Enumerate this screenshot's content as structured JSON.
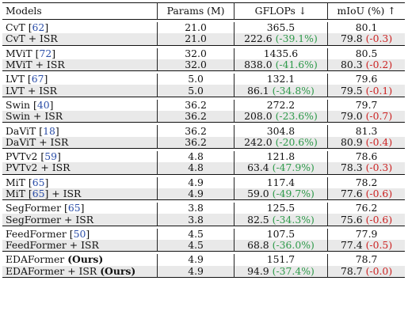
{
  "table": {
    "headers": {
      "models": "Models",
      "params": "Params (M)",
      "gflops": "GFLOPs ↓",
      "miou": "mIoU (%) ↑"
    },
    "groups": [
      {
        "base": {
          "name": "CvT",
          "cite": "62",
          "params": "21.0",
          "gflops": "365.5",
          "miou": "80.1"
        },
        "isr": {
          "name": "CvT",
          "suffix": "+ ISR",
          "params": "21.0",
          "gflops": "222.6",
          "gflops_delta": "(-39.1%)",
          "miou": "79.8",
          "miou_delta": "(-0.3)"
        }
      },
      {
        "base": {
          "name": "MViT",
          "cite": "72",
          "params": "32.0",
          "gflops": "1435.6",
          "miou": "80.5"
        },
        "isr": {
          "name": "MViT",
          "suffix": "+ ISR",
          "params": "32.0",
          "gflops": "838.0",
          "gflops_delta": "(-41.6%)",
          "miou": "80.3",
          "miou_delta": "(-0.2)"
        }
      },
      {
        "base": {
          "name": "LVT",
          "cite": "67",
          "params": "5.0",
          "gflops": "132.1",
          "miou": "79.6"
        },
        "isr": {
          "name": "LVT",
          "suffix": "+ ISR",
          "params": "5.0",
          "gflops": "86.1",
          "gflops_delta": "(-34.8%)",
          "miou": "79.5",
          "miou_delta": "(-0.1)"
        }
      },
      {
        "base": {
          "name": "Swin",
          "cite": "40",
          "params": "36.2",
          "gflops": "272.2",
          "miou": "79.7"
        },
        "isr": {
          "name": "Swin",
          "suffix": "+ ISR",
          "params": "36.2",
          "gflops": "208.0",
          "gflops_delta": "(-23.6%)",
          "miou": "79.0",
          "miou_delta": "(-0.7)"
        }
      },
      {
        "base": {
          "name": "DaViT",
          "cite": "18",
          "params": "36.2",
          "gflops": "304.8",
          "miou": "81.3"
        },
        "isr": {
          "name": "DaViT",
          "suffix": "+ ISR",
          "params": "36.2",
          "gflops": "242.0",
          "gflops_delta": "(-20.6%)",
          "miou": "80.9",
          "miou_delta": "(-0.4)"
        }
      },
      {
        "base": {
          "name": "PVTv2",
          "cite": "59",
          "params": "4.8",
          "gflops": "121.8",
          "miou": "78.6"
        },
        "isr": {
          "name": "PVTv2",
          "suffix": "+ ISR",
          "params": "4.8",
          "gflops": "63.4",
          "gflops_delta": "(-47.9%)",
          "miou": "78.3",
          "miou_delta": "(-0.3)"
        }
      },
      {
        "base": {
          "name": "MiT",
          "cite": "65",
          "params": "4.9",
          "gflops": "117.4",
          "miou": "78.2"
        },
        "isr": {
          "name": "MiT",
          "cite": "65",
          "suffix": "+ ISR",
          "params": "4.9",
          "gflops": "59.0",
          "gflops_delta": "(-49.7%)",
          "miou": "77.6",
          "miou_delta": "(-0.6)"
        }
      },
      {
        "base": {
          "name": "SegFormer",
          "cite": "65",
          "params": "3.8",
          "gflops": "125.5",
          "miou": "76.2"
        },
        "isr": {
          "name": "SegFormer",
          "suffix": "+ ISR",
          "params": "3.8",
          "gflops": "82.5",
          "gflops_delta": "(-34.3%)",
          "miou": "75.6",
          "miou_delta": "(-0.6)"
        }
      },
      {
        "base": {
          "name": "FeedFormer",
          "cite": "50",
          "params": "4.5",
          "gflops": "107.5",
          "miou": "77.9"
        },
        "isr": {
          "name": "FeedFormer",
          "suffix": "+ ISR",
          "params": "4.5",
          "gflops": "68.8",
          "gflops_delta": "(-36.0%)",
          "miou": "77.4",
          "miou_delta": "(-0.5)"
        }
      },
      {
        "base": {
          "name": "EDAFormer",
          "bold_tag": "(Ours)",
          "params": "4.9",
          "gflops": "151.7",
          "miou": "78.7"
        },
        "isr": {
          "name": "EDAFormer",
          "suffix": "+ ISR",
          "bold_tag": "(Ours)",
          "params": "4.9",
          "gflops": "94.9",
          "gflops_delta": "(-37.4%)",
          "miou": "78.7",
          "miou_delta": "(-0.0)"
        }
      }
    ]
  }
}
